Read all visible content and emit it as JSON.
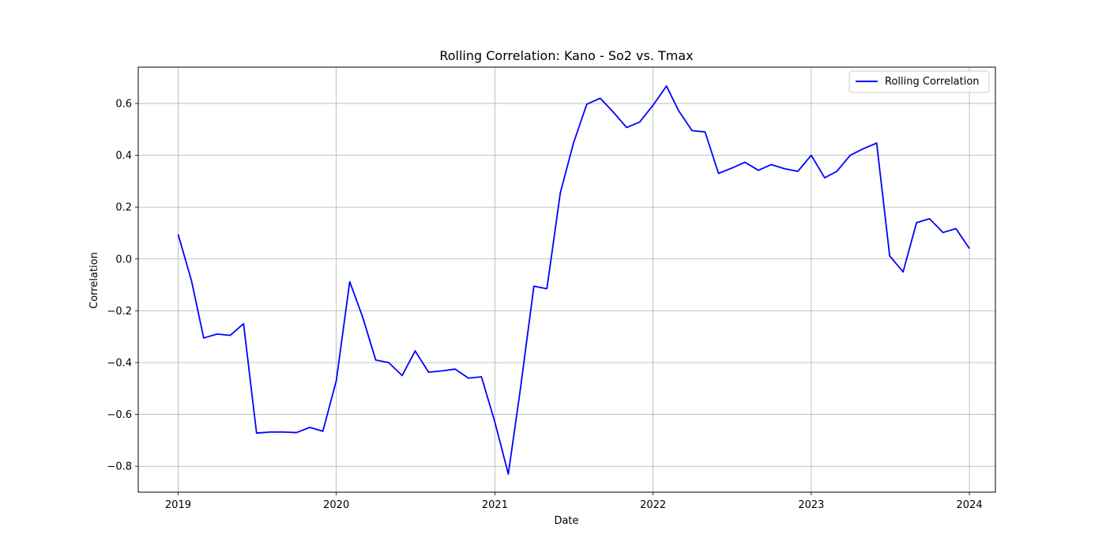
{
  "chart_data": {
    "type": "line",
    "title": "Rolling Correlation: Kano - So2 vs. Tmax",
    "xlabel": "Date",
    "ylabel": "Correlation",
    "grid": true,
    "legend_position": "top-right",
    "xlim": [
      "2018-10-01",
      "2024-03-01"
    ],
    "ylim": [
      -0.9,
      0.74
    ],
    "x_ticks": [
      "2019",
      "2020",
      "2021",
      "2022",
      "2023",
      "2024"
    ],
    "y_ticks": [
      "−0.8",
      "−0.6",
      "−0.4",
      "−0.2",
      "0.0",
      "0.2",
      "0.4",
      "0.6"
    ],
    "series": [
      {
        "name": "Rolling Correlation",
        "color": "#0000ff",
        "x": [
          "2019-01-01",
          "2019-02-01",
          "2019-03-01",
          "2019-04-01",
          "2019-05-01",
          "2019-06-01",
          "2019-07-01",
          "2019-08-01",
          "2019-09-01",
          "2019-10-01",
          "2019-11-01",
          "2019-12-01",
          "2020-01-01",
          "2020-02-01",
          "2020-03-01",
          "2020-04-01",
          "2020-05-01",
          "2020-06-01",
          "2020-07-01",
          "2020-08-01",
          "2020-09-01",
          "2020-10-01",
          "2020-11-01",
          "2020-12-01",
          "2021-01-01",
          "2021-02-01",
          "2021-03-01",
          "2021-04-01",
          "2021-05-01",
          "2021-06-01",
          "2021-07-01",
          "2021-08-01",
          "2021-09-01",
          "2021-10-01",
          "2021-11-01",
          "2021-12-01",
          "2022-01-01",
          "2022-02-01",
          "2022-03-01",
          "2022-04-01",
          "2022-05-01",
          "2022-06-01",
          "2022-07-01",
          "2022-08-01",
          "2022-09-01",
          "2022-10-01",
          "2022-11-01",
          "2022-12-01",
          "2023-01-01",
          "2023-02-01",
          "2023-03-01",
          "2023-04-01",
          "2023-05-01",
          "2023-06-01",
          "2023-07-01",
          "2023-08-01",
          "2023-09-01",
          "2023-10-01",
          "2023-11-01",
          "2023-12-01",
          "2024-01-01"
        ],
        "values": [
          0.095,
          -0.085,
          -0.305,
          -0.29,
          -0.295,
          -0.25,
          -0.672,
          -0.668,
          -0.668,
          -0.67,
          -0.65,
          -0.665,
          -0.47,
          -0.088,
          -0.22,
          -0.39,
          -0.4,
          -0.45,
          -0.355,
          -0.437,
          -0.432,
          -0.425,
          -0.46,
          -0.455,
          -0.63,
          -0.83,
          -0.5,
          -0.105,
          -0.115,
          0.255,
          0.445,
          0.597,
          0.62,
          0.567,
          0.507,
          0.528,
          0.593,
          0.667,
          0.572,
          0.495,
          0.49,
          0.33,
          0.35,
          0.373,
          0.342,
          0.364,
          0.348,
          0.338,
          0.4,
          0.313,
          0.338,
          0.4,
          0.425,
          0.447,
          0.012,
          -0.05,
          0.14,
          0.155,
          0.102,
          0.117,
          0.04
        ]
      }
    ]
  }
}
